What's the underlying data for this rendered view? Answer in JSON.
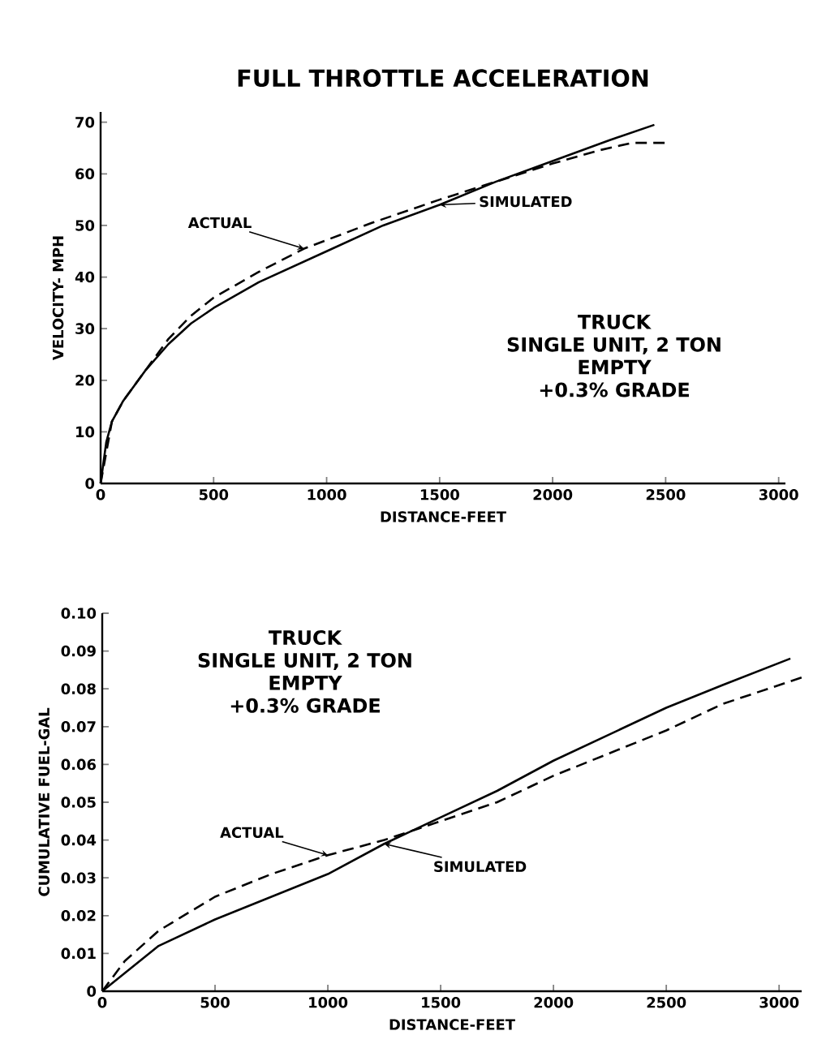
{
  "chart_data": [
    {
      "type": "line",
      "title": "FULL THROTTLE ACCELERATION",
      "xlabel": "DISTANCE-FEET",
      "ylabel": "VELOCITY- MPH",
      "xlim": [
        0,
        3030
      ],
      "xticks": [
        0,
        500,
        1000,
        1500,
        2000,
        2500,
        3000
      ],
      "ylim": [
        0,
        72
      ],
      "yticks": [
        0,
        10,
        20,
        30,
        40,
        50,
        60,
        70
      ],
      "annotations": [
        "TRUCK",
        "SINGLE UNIT, 2 TON",
        "EMPTY",
        "+0.3% GRADE"
      ],
      "series": [
        {
          "name": "ACTUAL",
          "color": "#000000",
          "line_style": "dashed",
          "x": [
            0,
            50,
            100,
            200,
            300,
            400,
            500,
            700,
            900,
            1200,
            1500,
            1750,
            2000,
            2200,
            2350,
            2500
          ],
          "values": [
            0,
            12,
            16,
            22,
            28,
            32.5,
            36,
            41,
            45.5,
            50.5,
            55,
            58.5,
            62,
            64.5,
            66,
            66
          ]
        },
        {
          "name": "SIMULATED",
          "color": "#000000",
          "line_style": "solid",
          "x": [
            0,
            25,
            50,
            100,
            200,
            300,
            400,
            500,
            700,
            1000,
            1250,
            1500,
            1750,
            2000,
            2250,
            2450
          ],
          "values": [
            0,
            8,
            12,
            16,
            22,
            27,
            31,
            34,
            39,
            45,
            50,
            54,
            58.5,
            62.5,
            66.5,
            69.5
          ]
        }
      ]
    },
    {
      "type": "line",
      "xlabel": "DISTANCE-FEET",
      "ylabel": "CUMULATIVE FUEL-GAL",
      "xlim": [
        0,
        3100
      ],
      "xticks": [
        0,
        500,
        1000,
        1500,
        2000,
        2500,
        3000
      ],
      "ylim": [
        0,
        0.1
      ],
      "yticks": [
        0,
        {
          "value": 0.01,
          "label": "0.01"
        },
        {
          "value": 0.02,
          "label": "0.02"
        },
        {
          "value": 0.03,
          "label": "0.03"
        },
        {
          "value": 0.04,
          "label": "0.04"
        },
        {
          "value": 0.05,
          "label": "0.05"
        },
        {
          "value": 0.06,
          "label": "0.06"
        },
        {
          "value": 0.07,
          "label": "0.07"
        },
        {
          "value": 0.08,
          "label": "0.08"
        },
        {
          "value": 0.09,
          "label": "0.09"
        },
        {
          "value": 0.1,
          "label": "0.10"
        }
      ],
      "annotations": [
        "TRUCK",
        "SINGLE UNIT, 2 TON",
        "EMPTY",
        "+0.3% GRADE"
      ],
      "series": [
        {
          "name": "ACTUAL",
          "color": "#000000",
          "line_style": "dashed",
          "x": [
            0,
            100,
            250,
            500,
            750,
            1000,
            1250,
            1500,
            1750,
            2000,
            2250,
            2500,
            2750,
            3100
          ],
          "values": [
            0,
            0.008,
            0.016,
            0.025,
            0.031,
            0.036,
            0.04,
            0.045,
            0.05,
            0.057,
            0.063,
            0.069,
            0.076,
            0.083
          ]
        },
        {
          "name": "SIMULATED",
          "color": "#000000",
          "line_style": "solid",
          "x": [
            0,
            250,
            500,
            750,
            1000,
            1250,
            1500,
            1750,
            2000,
            2250,
            2500,
            2750,
            3050
          ],
          "values": [
            0,
            0.012,
            0.019,
            0.025,
            0.031,
            0.039,
            0.046,
            0.053,
            0.061,
            0.068,
            0.075,
            0.081,
            0.088
          ]
        }
      ]
    }
  ]
}
